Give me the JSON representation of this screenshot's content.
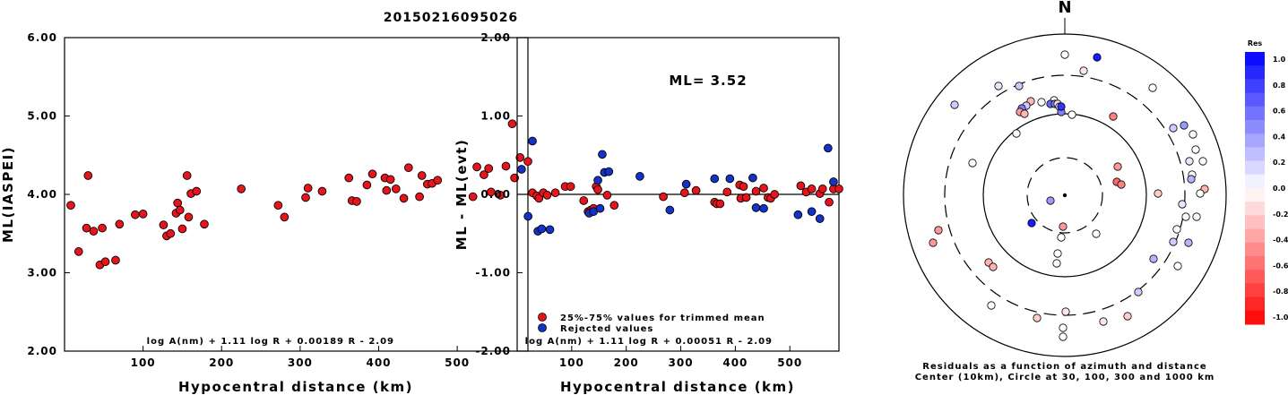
{
  "event_id": "20150216095026",
  "chart_data": [
    {
      "type": "scatter",
      "xlabel": "Hypocentral distance (km)",
      "ylabel": "ML(IASPEI)",
      "xlim": [
        0,
        590
      ],
      "ylim": [
        2.0,
        6.0
      ],
      "xticks": [
        "100",
        "200",
        "300",
        "400",
        "500"
      ],
      "yticks": [
        "2.00",
        "3.00",
        "4.00",
        "5.00",
        "6.00"
      ],
      "formula": "log A(nm) + 1.11 log R + 0.00189 R - 2.09",
      "marker_color": "#e8141c",
      "points": [
        [
          8,
          3.86
        ],
        [
          18,
          3.27
        ],
        [
          28,
          3.57
        ],
        [
          30,
          4.24
        ],
        [
          37,
          3.53
        ],
        [
          45,
          3.1
        ],
        [
          48,
          3.57
        ],
        [
          52,
          3.14
        ],
        [
          65,
          3.16
        ],
        [
          70,
          3.62
        ],
        [
          90,
          3.74
        ],
        [
          100,
          3.75
        ],
        [
          126,
          3.61
        ],
        [
          130,
          3.47
        ],
        [
          135,
          3.5
        ],
        [
          142,
          3.76
        ],
        [
          144,
          3.89
        ],
        [
          147,
          3.8
        ],
        [
          150,
          3.56
        ],
        [
          156,
          4.24
        ],
        [
          158,
          3.71
        ],
        [
          161,
          4.01
        ],
        [
          168,
          4.04
        ],
        [
          178,
          3.62
        ],
        [
          225,
          4.07
        ],
        [
          272,
          3.86
        ],
        [
          280,
          3.71
        ],
        [
          307,
          3.96
        ],
        [
          310,
          4.08
        ],
        [
          328,
          4.04
        ],
        [
          362,
          4.21
        ],
        [
          366,
          3.92
        ],
        [
          372,
          3.91
        ],
        [
          385,
          4.12
        ],
        [
          392,
          4.26
        ],
        [
          408,
          4.21
        ],
        [
          410,
          4.05
        ],
        [
          415,
          4.19
        ],
        [
          422,
          4.07
        ],
        [
          432,
          3.95
        ],
        [
          438,
          4.34
        ],
        [
          452,
          3.97
        ],
        [
          455,
          4.24
        ],
        [
          462,
          4.13
        ],
        [
          468,
          4.14
        ],
        [
          475,
          4.18
        ],
        [
          520,
          3.97
        ],
        [
          525,
          4.35
        ],
        [
          534,
          4.25
        ],
        [
          540,
          4.33
        ],
        [
          543,
          4.03
        ],
        [
          555,
          3.99
        ],
        [
          562,
          4.36
        ],
        [
          570,
          4.9
        ],
        [
          573,
          4.21
        ],
        [
          580,
          4.47
        ],
        [
          590,
          4.42
        ]
      ]
    },
    {
      "type": "scatter",
      "title": "ML= 3.52",
      "xlabel": "Hypocentral distance (km)",
      "ylabel": "ML - ML(evt)",
      "xlim": [
        0,
        590
      ],
      "ylim": [
        -2.0,
        2.0
      ],
      "xticks": [
        "100",
        "200",
        "300",
        "400",
        "500"
      ],
      "yticks": [
        "-2.00",
        "-1.00",
        "0.00",
        "1.00",
        "2.00"
      ],
      "formula": "log A(nm) + 1.11 log R + 0.00051 R - 2.09",
      "legend": [
        {
          "label": "25%-75% values for trimmed mean",
          "color": "#e8141c"
        },
        {
          "label": "Rejected values",
          "color": "#1432c8"
        }
      ],
      "series": [
        {
          "name": "25%-75% values for trimmed mean",
          "color": "#e8141c",
          "points": [
            [
              28,
              0.02
            ],
            [
              36,
              -0.02
            ],
            [
              40,
              -0.05
            ],
            [
              48,
              0.02
            ],
            [
              55,
              -0.01
            ],
            [
              70,
              0.02
            ],
            [
              88,
              0.1
            ],
            [
              98,
              0.1
            ],
            [
              122,
              -0.08
            ],
            [
              130,
              -0.22
            ],
            [
              135,
              -0.2
            ],
            [
              140,
              -0.18
            ],
            [
              145,
              0.1
            ],
            [
              148,
              0.06
            ],
            [
              165,
              -0.01
            ],
            [
              178,
              -0.14
            ],
            [
              268,
              -0.03
            ],
            [
              307,
              0.02
            ],
            [
              328,
              0.05
            ],
            [
              362,
              -0.1
            ],
            [
              366,
              -0.12
            ],
            [
              372,
              -0.12
            ],
            [
              385,
              0.03
            ],
            [
              408,
              0.12
            ],
            [
              410,
              -0.05
            ],
            [
              415,
              0.1
            ],
            [
              420,
              -0.04
            ],
            [
              438,
              0.04
            ],
            [
              452,
              0.08
            ],
            [
              460,
              -0.04
            ],
            [
              465,
              -0.05
            ],
            [
              472,
              0.0
            ],
            [
              520,
              0.11
            ],
            [
              530,
              0.03
            ],
            [
              540,
              0.07
            ],
            [
              555,
              0.01
            ],
            [
              560,
              0.07
            ],
            [
              572,
              -0.1
            ],
            [
              580,
              0.07
            ],
            [
              590,
              0.07
            ]
          ]
        },
        {
          "name": "Rejected values",
          "color": "#1432c8",
          "points": [
            [
              8,
              0.32
            ],
            [
              20,
              -0.28
            ],
            [
              28,
              0.68
            ],
            [
              38,
              -0.47
            ],
            [
              45,
              -0.44
            ],
            [
              60,
              -0.45
            ],
            [
              132,
              -0.24
            ],
            [
              140,
              -0.22
            ],
            [
              148,
              0.18
            ],
            [
              152,
              -0.18
            ],
            [
              156,
              0.51
            ],
            [
              160,
              0.28
            ],
            [
              168,
              0.29
            ],
            [
              225,
              0.23
            ],
            [
              280,
              -0.2
            ],
            [
              310,
              0.13
            ],
            [
              362,
              0.2
            ],
            [
              390,
              0.2
            ],
            [
              432,
              0.21
            ],
            [
              438,
              -0.17
            ],
            [
              452,
              -0.18
            ],
            [
              515,
              -0.26
            ],
            [
              540,
              -0.22
            ],
            [
              555,
              -0.31
            ],
            [
              570,
              0.59
            ],
            [
              580,
              0.16
            ]
          ]
        }
      ]
    },
    {
      "type": "scatter",
      "title": "N",
      "subtitle": "Residuals as a function of azimuth and distance",
      "caption": "Center (10km), Circle at 30, 100, 300 and 1000 km",
      "colorbar_title": "Res",
      "colorbar_ticks": [
        "1.0",
        "0.8",
        "0.6",
        "0.4",
        "0.2",
        "0.0",
        "-0.2",
        "-0.4",
        "-0.6",
        "-0.8",
        "-1.0"
      ],
      "colorbar_range": [
        -1.0,
        1.0
      ],
      "rings_km": [
        30,
        100,
        300,
        1000
      ],
      "center_km": 10,
      "points_res": [
        [
          1188,
          61,
          0.0
        ],
        [
          1224,
          64,
          0.9
        ],
        [
          1209,
          79,
          -0.1
        ],
        [
          1137,
          96,
          0.2
        ],
        [
          1114,
          96,
          0.1
        ],
        [
          1286,
          98,
          0.0
        ],
        [
          1065,
          117,
          0.2
        ],
        [
          1176,
          112,
          0.0
        ],
        [
          1150,
          113,
          -0.3
        ],
        [
          1162,
          114,
          0.0
        ],
        [
          1172,
          116,
          0.6
        ],
        [
          1177,
          116,
          0.5
        ],
        [
          1180,
          116,
          -0.1
        ],
        [
          1182,
          119,
          0.0
        ],
        [
          1145,
          118,
          0.2
        ],
        [
          1140,
          121,
          0.5
        ],
        [
          1138,
          125,
          -0.4
        ],
        [
          1143,
          127,
          -0.3
        ],
        [
          1196,
          128,
          0.0
        ],
        [
          1184,
          125,
          0.5
        ],
        [
          1184,
          119,
          0.8
        ],
        [
          1242,
          130,
          -0.5
        ],
        [
          1321,
          140,
          0.4
        ],
        [
          1309,
          143,
          0.2
        ],
        [
          1331,
          150,
          0.0
        ],
        [
          1334,
          167,
          0.0
        ],
        [
          1327,
          180,
          0.1
        ],
        [
          1342,
          180,
          0.0
        ],
        [
          1134,
          149,
          0.0
        ],
        [
          1085,
          182,
          0.0
        ],
        [
          1247,
          186,
          -0.4
        ],
        [
          1246,
          203,
          -0.6
        ],
        [
          1251,
          206,
          -0.5
        ],
        [
          1330,
          195,
          0.0
        ],
        [
          1329,
          200,
          0.3
        ],
        [
          1344,
          211,
          -0.3
        ],
        [
          1339,
          216,
          0.0
        ],
        [
          1292,
          216,
          -0.2
        ],
        [
          1319,
          228,
          0.1
        ],
        [
          1323,
          242,
          0.0
        ],
        [
          1335,
          242,
          0.0
        ],
        [
          1313,
          256,
          0.0
        ],
        [
          1326,
          271,
          0.3
        ],
        [
          1309,
          270,
          0.2
        ],
        [
          1047,
          257,
          -0.4
        ],
        [
          1041,
          271,
          -0.4
        ],
        [
          1172,
          224,
          0.4
        ],
        [
          1151,
          249,
          0.9
        ],
        [
          1186,
          253,
          -0.4
        ],
        [
          1223,
          261,
          0.0
        ],
        [
          1184,
          265,
          0.0
        ],
        [
          1180,
          283,
          0.0
        ],
        [
          1179,
          294,
          0.0
        ],
        [
          1103,
          293,
          -0.3
        ],
        [
          1108,
          298,
          -0.3
        ],
        [
          1287,
          289,
          0.3
        ],
        [
          1314,
          297,
          0.0
        ],
        [
          1106,
          341,
          0.0
        ],
        [
          1270,
          326,
          0.2
        ],
        [
          1157,
          355,
          -0.2
        ],
        [
          1189,
          348,
          -0.1
        ],
        [
          1231,
          359,
          -0.1
        ],
        [
          1258,
          353,
          -0.2
        ],
        [
          1186,
          366,
          0.0
        ],
        [
          1186,
          376,
          0.0
        ]
      ]
    }
  ]
}
